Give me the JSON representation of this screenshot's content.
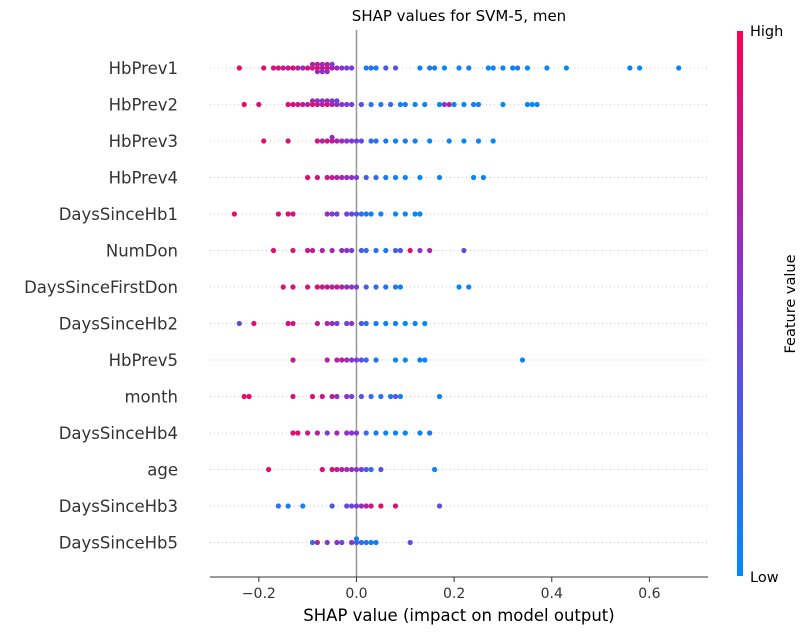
{
  "chart_data": {
    "type": "scatter",
    "title": "SHAP values for SVM-5, men",
    "xlabel": "SHAP value (impact on model output)",
    "xlim": [
      -0.3,
      0.72
    ],
    "xticks": [
      "−0.2",
      "0.0",
      "0.2",
      "0.4",
      "0.6"
    ],
    "colorbar": {
      "label": "Feature value",
      "high": "High",
      "low": "Low"
    },
    "colors": {
      "low": "#008bfb",
      "mid": "#7c3ad8",
      "high": "#ff0052",
      "zero_line": "#999999",
      "axis": "#333333"
    },
    "features": [
      {
        "name": "HbPrev1",
        "points": [
          [
            -0.24,
            0.95
          ],
          [
            -0.19,
            0.9
          ],
          [
            -0.17,
            0.85
          ],
          [
            -0.16,
            0.9
          ],
          [
            -0.15,
            0.75
          ],
          [
            -0.14,
            0.8
          ],
          [
            -0.13,
            0.9
          ],
          [
            -0.12,
            0.7
          ],
          [
            -0.11,
            0.6
          ],
          [
            -0.1,
            0.85
          ],
          [
            -0.09,
            0.8
          ],
          [
            -0.09,
            0.7
          ],
          [
            -0.08,
            0.9
          ],
          [
            -0.08,
            0.75
          ],
          [
            -0.08,
            0.6
          ],
          [
            -0.07,
            0.8
          ],
          [
            -0.07,
            0.65
          ],
          [
            -0.07,
            0.55
          ],
          [
            -0.06,
            0.85
          ],
          [
            -0.06,
            0.7
          ],
          [
            -0.06,
            0.6
          ],
          [
            -0.05,
            0.75
          ],
          [
            -0.05,
            0.5
          ],
          [
            -0.04,
            0.65
          ],
          [
            -0.03,
            0.55
          ],
          [
            -0.02,
            0.45
          ],
          [
            -0.01,
            0.5
          ],
          [
            0.02,
            0.1
          ],
          [
            0.03,
            0.15
          ],
          [
            0.04,
            0.1
          ],
          [
            0.06,
            0.3
          ],
          [
            0.08,
            0.35
          ],
          [
            0.13,
            0.05
          ],
          [
            0.15,
            0.1
          ],
          [
            0.16,
            0.1
          ],
          [
            0.18,
            0.0
          ],
          [
            0.21,
            0.05
          ],
          [
            0.23,
            0.1
          ],
          [
            0.27,
            0.0
          ],
          [
            0.28,
            0.05
          ],
          [
            0.3,
            0.0
          ],
          [
            0.32,
            0.05
          ],
          [
            0.33,
            0.1
          ],
          [
            0.35,
            0.0
          ],
          [
            0.39,
            0.05
          ],
          [
            0.43,
            0.0
          ],
          [
            0.56,
            0.05
          ],
          [
            0.58,
            0.0
          ],
          [
            0.66,
            0.05
          ]
        ]
      },
      {
        "name": "HbPrev2",
        "points": [
          [
            -0.23,
            0.95
          ],
          [
            -0.2,
            0.85
          ],
          [
            -0.14,
            0.9
          ],
          [
            -0.13,
            0.85
          ],
          [
            -0.12,
            0.8
          ],
          [
            -0.11,
            0.75
          ],
          [
            -0.1,
            0.7
          ],
          [
            -0.09,
            0.9
          ],
          [
            -0.09,
            0.65
          ],
          [
            -0.08,
            0.8
          ],
          [
            -0.08,
            0.6
          ],
          [
            -0.07,
            0.75
          ],
          [
            -0.07,
            0.55
          ],
          [
            -0.06,
            0.85
          ],
          [
            -0.06,
            0.65
          ],
          [
            -0.05,
            0.7
          ],
          [
            -0.05,
            0.5
          ],
          [
            -0.04,
            0.6
          ],
          [
            -0.04,
            0.45
          ],
          [
            -0.03,
            0.55
          ],
          [
            -0.02,
            0.45
          ],
          [
            -0.01,
            0.5
          ],
          [
            0.01,
            0.3
          ],
          [
            0.03,
            0.15
          ],
          [
            0.05,
            0.1
          ],
          [
            0.07,
            0.2
          ],
          [
            0.09,
            0.05
          ],
          [
            0.1,
            0.1
          ],
          [
            0.12,
            0.05
          ],
          [
            0.14,
            0.05
          ],
          [
            0.17,
            0.0
          ],
          [
            0.18,
            0.55
          ],
          [
            0.19,
            0.7
          ],
          [
            0.2,
            0.05
          ],
          [
            0.22,
            0.0
          ],
          [
            0.24,
            0.1
          ],
          [
            0.25,
            0.05
          ],
          [
            0.3,
            0.0
          ],
          [
            0.35,
            0.05
          ],
          [
            0.36,
            0.0
          ],
          [
            0.37,
            0.05
          ]
        ]
      },
      {
        "name": "HbPrev3",
        "points": [
          [
            -0.19,
            0.9
          ],
          [
            -0.14,
            0.85
          ],
          [
            -0.08,
            0.8
          ],
          [
            -0.07,
            0.7
          ],
          [
            -0.06,
            0.85
          ],
          [
            -0.05,
            0.75
          ],
          [
            -0.05,
            0.6
          ],
          [
            -0.04,
            0.7
          ],
          [
            -0.03,
            0.65
          ],
          [
            -0.02,
            0.55
          ],
          [
            -0.01,
            0.5
          ],
          [
            0.0,
            0.45
          ],
          [
            0.01,
            0.4
          ],
          [
            0.03,
            0.2
          ],
          [
            0.04,
            0.15
          ],
          [
            0.06,
            0.1
          ],
          [
            0.08,
            0.05
          ],
          [
            0.1,
            0.1
          ],
          [
            0.12,
            0.05
          ],
          [
            0.15,
            0.0
          ],
          [
            0.19,
            0.05
          ],
          [
            0.22,
            0.0
          ],
          [
            0.25,
            0.05
          ],
          [
            0.28,
            0.0
          ]
        ]
      },
      {
        "name": "HbPrev4",
        "points": [
          [
            -0.1,
            0.9
          ],
          [
            -0.08,
            0.85
          ],
          [
            -0.06,
            0.8
          ],
          [
            -0.05,
            0.75
          ],
          [
            -0.04,
            0.7
          ],
          [
            -0.03,
            0.65
          ],
          [
            -0.02,
            0.6
          ],
          [
            -0.01,
            0.55
          ],
          [
            0.0,
            0.5
          ],
          [
            0.02,
            0.3
          ],
          [
            0.04,
            0.2
          ],
          [
            0.06,
            0.1
          ],
          [
            0.08,
            0.05
          ],
          [
            0.1,
            0.05
          ],
          [
            0.13,
            0.0
          ],
          [
            0.17,
            0.05
          ],
          [
            0.24,
            0.0
          ],
          [
            0.26,
            0.05
          ]
        ]
      },
      {
        "name": "DaysSinceHb1",
        "points": [
          [
            -0.25,
            0.9
          ],
          [
            -0.16,
            0.85
          ],
          [
            -0.14,
            0.9
          ],
          [
            -0.13,
            0.8
          ],
          [
            -0.06,
            0.6
          ],
          [
            -0.05,
            0.5
          ],
          [
            -0.04,
            0.45
          ],
          [
            -0.02,
            0.5
          ],
          [
            -0.01,
            0.4
          ],
          [
            0.0,
            0.3
          ],
          [
            0.01,
            0.2
          ],
          [
            0.02,
            0.1
          ],
          [
            0.03,
            0.05
          ],
          [
            0.05,
            0.05
          ],
          [
            0.08,
            0.0
          ],
          [
            0.1,
            0.05
          ],
          [
            0.12,
            0.0
          ],
          [
            0.13,
            0.05
          ]
        ]
      },
      {
        "name": "NumDon",
        "points": [
          [
            -0.17,
            0.9
          ],
          [
            -0.13,
            0.85
          ],
          [
            -0.1,
            0.8
          ],
          [
            -0.09,
            0.75
          ],
          [
            -0.07,
            0.7
          ],
          [
            -0.05,
            0.65
          ],
          [
            -0.03,
            0.6
          ],
          [
            -0.02,
            0.55
          ],
          [
            -0.01,
            0.5
          ],
          [
            0.01,
            0.3
          ],
          [
            0.02,
            0.2
          ],
          [
            0.04,
            0.15
          ],
          [
            0.06,
            0.1
          ],
          [
            0.08,
            0.25
          ],
          [
            0.09,
            0.35
          ],
          [
            0.11,
            0.9
          ],
          [
            0.13,
            0.55
          ],
          [
            0.15,
            0.7
          ],
          [
            0.22,
            0.4
          ]
        ]
      },
      {
        "name": "DaysSinceFirstDon",
        "points": [
          [
            -0.15,
            0.9
          ],
          [
            -0.13,
            0.85
          ],
          [
            -0.1,
            0.8
          ],
          [
            -0.08,
            0.9
          ],
          [
            -0.07,
            0.75
          ],
          [
            -0.06,
            0.85
          ],
          [
            -0.05,
            0.7
          ],
          [
            -0.04,
            0.8
          ],
          [
            -0.03,
            0.65
          ],
          [
            -0.02,
            0.6
          ],
          [
            -0.01,
            0.55
          ],
          [
            0.0,
            0.5
          ],
          [
            0.02,
            0.3
          ],
          [
            0.04,
            0.2
          ],
          [
            0.06,
            0.15
          ],
          [
            0.08,
            0.1
          ],
          [
            0.09,
            0.05
          ],
          [
            0.21,
            0.0
          ],
          [
            0.23,
            0.05
          ]
        ]
      },
      {
        "name": "DaysSinceHb2",
        "points": [
          [
            -0.24,
            0.4
          ],
          [
            -0.21,
            0.9
          ],
          [
            -0.14,
            0.85
          ],
          [
            -0.13,
            0.8
          ],
          [
            -0.08,
            0.75
          ],
          [
            -0.06,
            0.7
          ],
          [
            -0.05,
            0.6
          ],
          [
            -0.04,
            0.5
          ],
          [
            -0.02,
            0.45
          ],
          [
            -0.01,
            0.55
          ],
          [
            0.01,
            0.3
          ],
          [
            0.02,
            0.2
          ],
          [
            0.04,
            0.1
          ],
          [
            0.06,
            0.05
          ],
          [
            0.08,
            0.05
          ],
          [
            0.1,
            0.0
          ],
          [
            0.12,
            0.05
          ],
          [
            0.14,
            0.0
          ]
        ]
      },
      {
        "name": "HbPrev5",
        "points": [
          [
            -0.13,
            0.8
          ],
          [
            -0.06,
            0.7
          ],
          [
            -0.04,
            0.65
          ],
          [
            -0.03,
            0.75
          ],
          [
            -0.02,
            0.6
          ],
          [
            -0.01,
            0.55
          ],
          [
            0.0,
            0.5
          ],
          [
            0.01,
            0.4
          ],
          [
            0.02,
            0.2
          ],
          [
            0.04,
            0.1
          ],
          [
            0.08,
            0.05
          ],
          [
            0.1,
            0.0
          ],
          [
            0.13,
            0.05
          ],
          [
            0.14,
            0.0
          ],
          [
            0.34,
            0.05
          ]
        ]
      },
      {
        "name": "month",
        "points": [
          [
            -0.23,
            0.9
          ],
          [
            -0.22,
            0.95
          ],
          [
            -0.13,
            0.85
          ],
          [
            -0.09,
            0.9
          ],
          [
            -0.07,
            0.8
          ],
          [
            -0.05,
            0.75
          ],
          [
            -0.04,
            0.6
          ],
          [
            -0.02,
            0.55
          ],
          [
            -0.01,
            0.5
          ],
          [
            0.01,
            0.3
          ],
          [
            0.03,
            0.2
          ],
          [
            0.05,
            0.15
          ],
          [
            0.07,
            0.1
          ],
          [
            0.08,
            0.35
          ],
          [
            0.09,
            0.05
          ],
          [
            0.17,
            0.05
          ]
        ]
      },
      {
        "name": "DaysSinceHb4",
        "points": [
          [
            -0.13,
            0.9
          ],
          [
            -0.12,
            0.85
          ],
          [
            -0.1,
            0.8
          ],
          [
            -0.08,
            0.7
          ],
          [
            -0.06,
            0.5
          ],
          [
            -0.04,
            0.65
          ],
          [
            -0.02,
            0.6
          ],
          [
            -0.01,
            0.55
          ],
          [
            0.0,
            0.5
          ],
          [
            0.02,
            0.2
          ],
          [
            0.04,
            0.1
          ],
          [
            0.06,
            0.05
          ],
          [
            0.08,
            0.05
          ],
          [
            0.1,
            0.0
          ],
          [
            0.13,
            0.05
          ],
          [
            0.15,
            0.1
          ]
        ]
      },
      {
        "name": "age",
        "points": [
          [
            -0.18,
            0.9
          ],
          [
            -0.07,
            0.85
          ],
          [
            -0.05,
            0.8
          ],
          [
            -0.04,
            0.75
          ],
          [
            -0.03,
            0.7
          ],
          [
            -0.02,
            0.65
          ],
          [
            -0.01,
            0.6
          ],
          [
            0.0,
            0.55
          ],
          [
            0.01,
            0.5
          ],
          [
            0.02,
            0.3
          ],
          [
            0.03,
            0.2
          ],
          [
            0.05,
            0.35
          ],
          [
            0.16,
            0.05
          ]
        ]
      },
      {
        "name": "DaysSinceHb3",
        "points": [
          [
            -0.16,
            0.15
          ],
          [
            -0.14,
            0.1
          ],
          [
            -0.11,
            0.05
          ],
          [
            -0.05,
            0.3
          ],
          [
            -0.02,
            0.4
          ],
          [
            -0.01,
            0.45
          ],
          [
            0.0,
            0.5
          ],
          [
            0.01,
            0.6
          ],
          [
            0.02,
            0.7
          ],
          [
            0.03,
            0.8
          ],
          [
            0.05,
            0.9
          ],
          [
            0.08,
            0.85
          ],
          [
            0.17,
            0.35
          ]
        ]
      },
      {
        "name": "DaysSinceHb5",
        "points": [
          [
            -0.09,
            0.2
          ],
          [
            -0.08,
            0.7
          ],
          [
            -0.06,
            0.5
          ],
          [
            -0.04,
            0.6
          ],
          [
            -0.03,
            0.4
          ],
          [
            -0.01,
            0.55
          ],
          [
            0.0,
            0.3
          ],
          [
            0.0,
            0.1
          ],
          [
            0.01,
            0.2
          ],
          [
            0.02,
            0.15
          ],
          [
            0.03,
            0.05
          ],
          [
            0.04,
            0.1
          ],
          [
            0.11,
            0.35
          ]
        ]
      }
    ]
  }
}
